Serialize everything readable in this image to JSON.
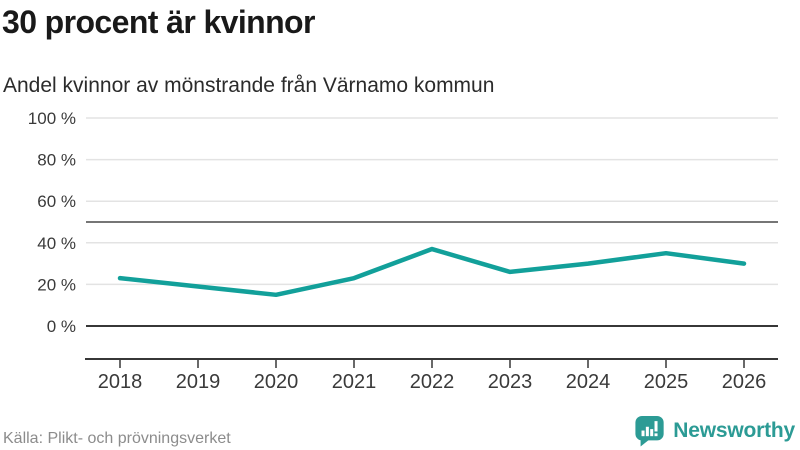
{
  "header": {
    "title": "30 procent är kvinnor",
    "subtitle": "Andel kvinnor av mönstrande från Värnamo kommun"
  },
  "footer": {
    "source": "Källa: Plikt- och prövningsverket",
    "brand": "Newsworthy",
    "logo_icon": "bar-chart-speech-bubble-icon"
  },
  "colors": {
    "line": "#12a09a",
    "brand": "#2c9b95",
    "grid": "#e3e3e3",
    "reference": "#767676",
    "axis": "#373737",
    "tick_label": "#3a3a3a",
    "source": "#8c8c8c",
    "background": "#ffffff"
  },
  "chart_data": {
    "type": "line",
    "x": [
      2018,
      2019,
      2020,
      2021,
      2022,
      2023,
      2024,
      2025,
      2026
    ],
    "series": [
      {
        "name": "Andel kvinnor av mönstrande",
        "values": [
          23,
          19,
          15,
          23,
          37,
          26,
          30,
          35,
          30
        ]
      }
    ],
    "unit": "%",
    "title": "30 procent är kvinnor",
    "subtitle": "Andel kvinnor av mönstrande från Värnamo kommun",
    "xlabel": "",
    "ylabel": "",
    "ylim": [
      0,
      100
    ],
    "yticks": [
      0,
      20,
      40,
      60,
      80,
      100
    ],
    "ytick_suffix": " %",
    "reference_line": 50,
    "grid": true,
    "legend": "none"
  }
}
